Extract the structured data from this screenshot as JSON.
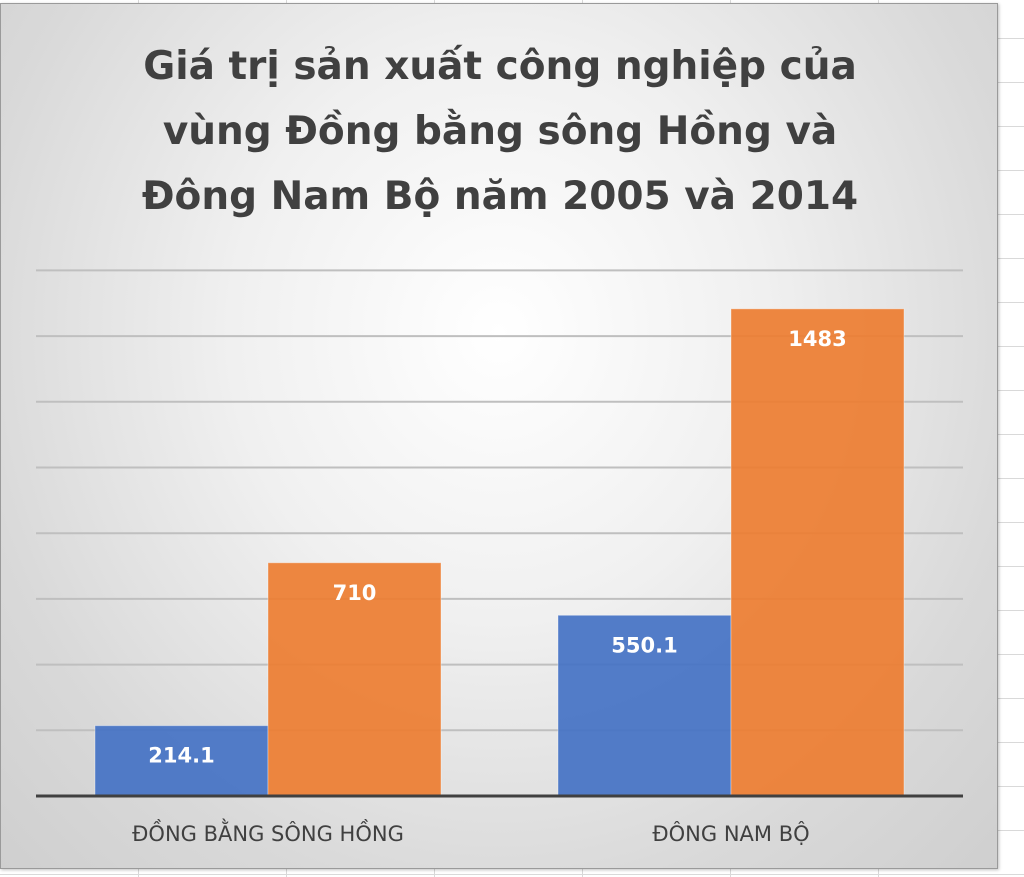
{
  "chart_data": {
    "type": "bar",
    "title": "Giá trị sản xuất công nghiệp của vùng Đồng bằng sông Hồng và Đông Nam Bộ năm 2005 và 2014",
    "title_lines": [
      "Giá trị sản xuất công nghiệp của",
      "vùng Đồng bằng sông Hồng và",
      "Đông Nam Bộ năm 2005 và 2014"
    ],
    "categories": [
      "ĐỒNG BẰNG SÔNG HỒNG",
      "ĐÔNG NAM BỘ"
    ],
    "series": [
      {
        "values": [
          214.1,
          550.1
        ],
        "color": "#4472c4"
      },
      {
        "values": [
          710,
          1483
        ],
        "color": "#ed7d31"
      }
    ],
    "ylim": [
      0,
      1600
    ],
    "y_gridline_step": 200,
    "grid": true,
    "xlabel": "",
    "ylabel": "",
    "data_labels": true
  }
}
